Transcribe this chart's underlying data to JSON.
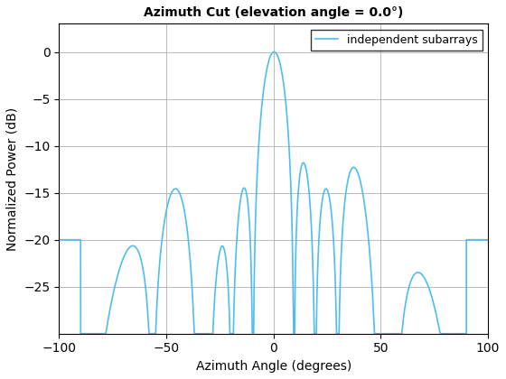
{
  "title": "Azimuth Cut (elevation angle = 0.0°)",
  "xlabel": "Azimuth Angle (degrees)",
  "ylabel": "Normalized Power (dB)",
  "legend_label": "independent subarrays",
  "line_color": "#4DBEEE",
  "xlim": [
    -100,
    100
  ],
  "ylim": [
    -30,
    3
  ],
  "yticks": [
    -25,
    -20,
    -15,
    -10,
    -5,
    0
  ],
  "xticks": [
    -100,
    -50,
    0,
    50,
    100
  ],
  "grid": true,
  "figsize": [
    5.6,
    4.2
  ],
  "dpi": 100,
  "background": "#ffffff",
  "title_fontsize": 10,
  "label_fontsize": 10,
  "linewidth": 1.2
}
